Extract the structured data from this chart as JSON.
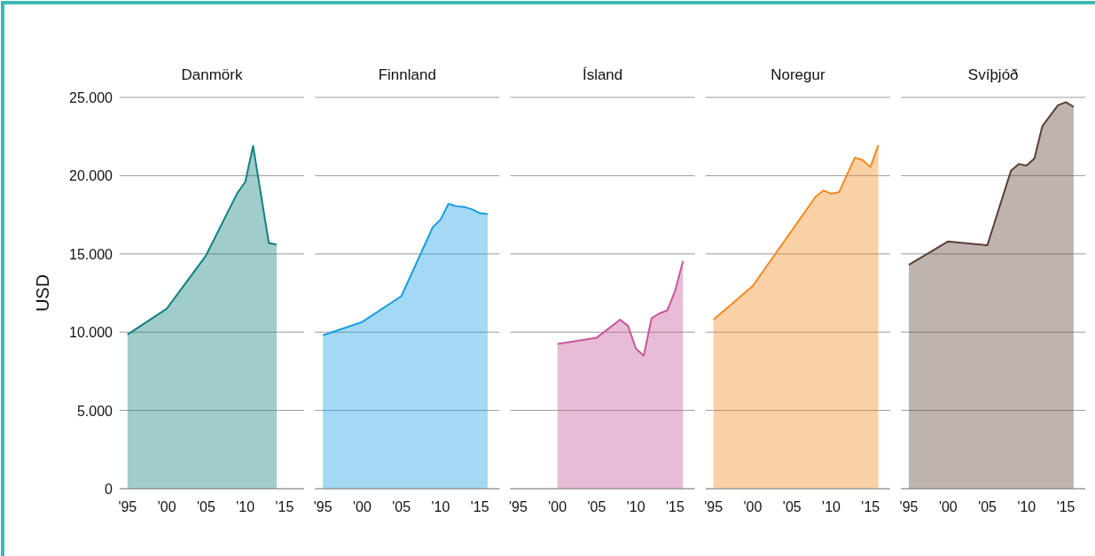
{
  "chart_data": [
    {
      "type": "area",
      "title": "Danmörk",
      "ylabel": "USD",
      "xlim": [
        1994,
        2017.5
      ],
      "ylim": [
        0,
        25000
      ],
      "grid": "y",
      "xticks": [
        {
          "value": 1995,
          "label": "'95"
        },
        {
          "value": 2000,
          "label": "'00"
        },
        {
          "value": 2005,
          "label": "'05"
        },
        {
          "value": 2010,
          "label": "'10"
        },
        {
          "value": 2015,
          "label": "'15"
        }
      ],
      "yticks": [
        {
          "value": 0,
          "label": "0"
        },
        {
          "value": 5000,
          "label": "5.000"
        },
        {
          "value": 10000,
          "label": "10.000"
        },
        {
          "value": 15000,
          "label": "15.000"
        },
        {
          "value": 20000,
          "label": "20.000"
        },
        {
          "value": 25000,
          "label": "25.000"
        }
      ],
      "series": [
        {
          "color": "#138080",
          "x": [
            1995,
            2000,
            2005,
            2009,
            2010,
            2011,
            2013,
            2014
          ],
          "values": [
            9850,
            11500,
            14900,
            18900,
            19600,
            21900,
            15700,
            15600
          ]
        }
      ]
    },
    {
      "type": "area",
      "title": "Finnland",
      "xlim": [
        1994,
        2017.5
      ],
      "ylim": [
        0,
        25000
      ],
      "grid": "y",
      "tick_labels": "x",
      "xticks": [
        {
          "value": 1995,
          "label": "'95"
        },
        {
          "value": 2000,
          "label": "'00"
        },
        {
          "value": 2005,
          "label": "'05"
        },
        {
          "value": 2010,
          "label": "'10"
        },
        {
          "value": 2015,
          "label": "'15"
        }
      ],
      "yticks": [
        0,
        5000,
        10000,
        15000,
        20000,
        25000
      ],
      "series": [
        {
          "color": "#1a9fe0",
          "x": [
            1995,
            2000,
            2005,
            2009,
            2010,
            2011,
            2012,
            2013,
            2014,
            2015,
            2016
          ],
          "values": [
            9800,
            10650,
            12300,
            16700,
            17200,
            18200,
            18050,
            18000,
            17850,
            17600,
            17550
          ]
        }
      ]
    },
    {
      "type": "area",
      "title": "Ísland",
      "xlim": [
        1994,
        2017.5
      ],
      "ylim": [
        0,
        25000
      ],
      "grid": "y",
      "tick_labels": "x",
      "xticks": [
        {
          "value": 1995,
          "label": "'95"
        },
        {
          "value": 2000,
          "label": "'00"
        },
        {
          "value": 2005,
          "label": "'05"
        },
        {
          "value": 2010,
          "label": "'10"
        },
        {
          "value": 2015,
          "label": "'15"
        }
      ],
      "yticks": [
        0,
        5000,
        10000,
        15000,
        20000,
        25000
      ],
      "series": [
        {
          "color": "#c6589a",
          "x": [
            2000,
            2005,
            2008,
            2009,
            2010,
            2011,
            2012,
            2013,
            2014,
            2015,
            2016
          ],
          "values": [
            9250,
            9650,
            10800,
            10400,
            8950,
            8500,
            10900,
            11200,
            11400,
            12650,
            14550
          ]
        }
      ]
    },
    {
      "type": "area",
      "title": "Noregur",
      "xlim": [
        1994,
        2017.5
      ],
      "ylim": [
        0,
        25000
      ],
      "grid": "y",
      "tick_labels": "x",
      "xticks": [
        {
          "value": 1995,
          "label": "'95"
        },
        {
          "value": 2000,
          "label": "'00"
        },
        {
          "value": 2005,
          "label": "'05"
        },
        {
          "value": 2010,
          "label": "'10"
        },
        {
          "value": 2015,
          "label": "'15"
        }
      ],
      "yticks": [
        0,
        5000,
        10000,
        15000,
        20000,
        25000
      ],
      "series": [
        {
          "color": "#f28a24",
          "x": [
            1995,
            2000,
            2008,
            2009,
            2010,
            2011,
            2013,
            2014,
            2015,
            2016
          ],
          "values": [
            10800,
            12950,
            18650,
            19050,
            18850,
            18950,
            21150,
            21000,
            20550,
            21950
          ]
        }
      ]
    },
    {
      "type": "area",
      "title": "Svíþjóð",
      "xlim": [
        1994,
        2017.5
      ],
      "ylim": [
        0,
        25000
      ],
      "grid": "y",
      "tick_labels": "x",
      "xticks": [
        {
          "value": 1995,
          "label": "'95"
        },
        {
          "value": 2000,
          "label": "'00"
        },
        {
          "value": 2005,
          "label": "'05"
        },
        {
          "value": 2010,
          "label": "'10"
        },
        {
          "value": 2015,
          "label": "'15"
        }
      ],
      "yticks": [
        0,
        5000,
        10000,
        15000,
        20000,
        25000
      ],
      "series": [
        {
          "color": "#5c4038",
          "x": [
            1995,
            2000,
            2005,
            2008,
            2009,
            2010,
            2011,
            2012,
            2014,
            2015,
            2016
          ],
          "values": [
            14300,
            15800,
            15550,
            20300,
            20750,
            20650,
            21100,
            23150,
            24500,
            24700,
            24400
          ]
        }
      ]
    }
  ]
}
